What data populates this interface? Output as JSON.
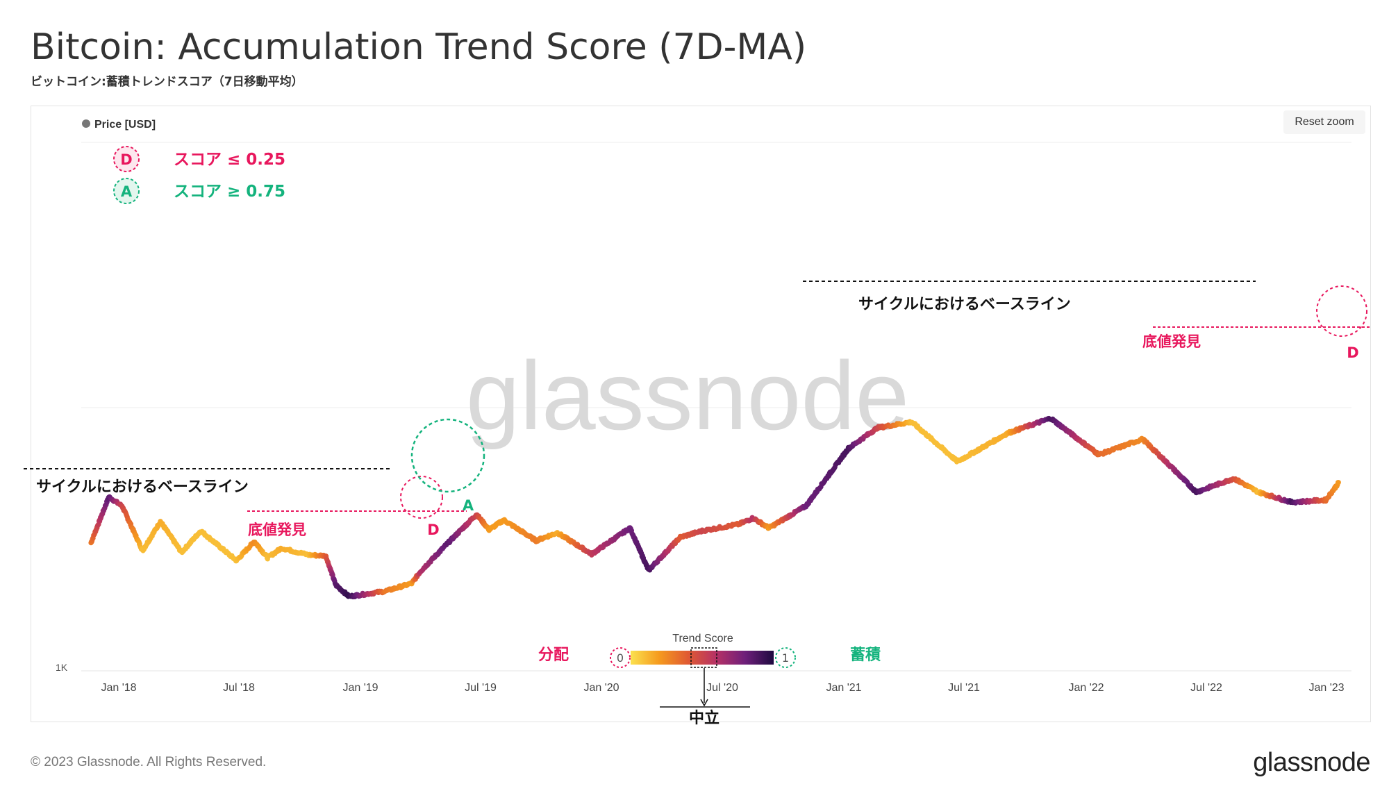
{
  "title": "Bitcoin: Accumulation Trend Score (7D-MA)",
  "subtitle": "ビットコイン:蓄積トレンドスコア（7日移動平均）",
  "reset_zoom": "Reset zoom",
  "legend_item": "Price [USD]",
  "key": {
    "d_letter": "D",
    "d_text": "スコア ≤ 0.25",
    "a_letter": "A",
    "a_text": "スコア ≥ 0.75"
  },
  "annotations": {
    "baseline_label": "サイクルにおけるベースライン",
    "bottom_label": "底値発見",
    "d_marker": "D",
    "a_marker": "A"
  },
  "colorbar": {
    "title": "Trend Score",
    "left_label": "分配",
    "right_label": "蓄積",
    "min_label": "0",
    "max_label": "1",
    "neutral_label": "中立"
  },
  "watermark": "glassnode",
  "footer": {
    "copyright": "© 2023 Glassnode. All Rights Reserved.",
    "logo": "glassnode"
  },
  "colors": {
    "title": "#333333",
    "distribution": "#e8175d",
    "accumulation": "#14b37d",
    "gradient": [
      "#fbe14f",
      "#f59a1e",
      "#e05a32",
      "#b53166",
      "#6e1f7a",
      "#1e0a40"
    ]
  },
  "chart_data": {
    "type": "line",
    "y_axis": {
      "scale": "log",
      "tick_labels": [
        "1K"
      ]
    },
    "x_tick_labels": [
      "Jan '18",
      "Jul '18",
      "Jan '19",
      "Jul '19",
      "Jan '20",
      "Jul '20",
      "Jan '21",
      "Jul '21",
      "Jan '22",
      "Jul '22",
      "Jan '23"
    ],
    "series": [
      {
        "name": "Price [USD]",
        "color_by": "trend_score",
        "points": [
          {
            "x": "2017-11-20",
            "price": 8000,
            "score": 0.3
          },
          {
            "x": "2017-12-17",
            "price": 17500,
            "score": 0.85
          },
          {
            "x": "2018-01-06",
            "price": 15000,
            "score": 0.5
          },
          {
            "x": "2018-02-06",
            "price": 7000,
            "score": 0.1
          },
          {
            "x": "2018-03-05",
            "price": 11500,
            "score": 0.15
          },
          {
            "x": "2018-04-06",
            "price": 6800,
            "score": 0.1
          },
          {
            "x": "2018-05-05",
            "price": 9800,
            "score": 0.1
          },
          {
            "x": "2018-06-28",
            "price": 5900,
            "score": 0.1
          },
          {
            "x": "2018-07-25",
            "price": 8200,
            "score": 0.25
          },
          {
            "x": "2018-08-14",
            "price": 6200,
            "score": 0.1
          },
          {
            "x": "2018-09-04",
            "price": 7300,
            "score": 0.15
          },
          {
            "x": "2018-10-15",
            "price": 6500,
            "score": 0.1
          },
          {
            "x": "2018-11-10",
            "price": 6400,
            "score": 0.4
          },
          {
            "x": "2018-11-25",
            "price": 3900,
            "score": 0.85
          },
          {
            "x": "2018-12-15",
            "price": 3200,
            "score": 0.95
          },
          {
            "x": "2019-02-08",
            "price": 3500,
            "score": 0.3
          },
          {
            "x": "2019-03-20",
            "price": 4000,
            "score": 0.2
          },
          {
            "x": "2019-04-02",
            "price": 4900,
            "score": 0.6
          },
          {
            "x": "2019-05-14",
            "price": 8000,
            "score": 0.85
          },
          {
            "x": "2019-06-26",
            "price": 13000,
            "score": 0.5
          },
          {
            "x": "2019-07-15",
            "price": 10000,
            "score": 0.2
          },
          {
            "x": "2019-08-06",
            "price": 11800,
            "score": 0.2
          },
          {
            "x": "2019-09-24",
            "price": 8300,
            "score": 0.3
          },
          {
            "x": "2019-10-26",
            "price": 9500,
            "score": 0.15
          },
          {
            "x": "2019-12-17",
            "price": 6600,
            "score": 0.55
          },
          {
            "x": "2020-02-13",
            "price": 10300,
            "score": 0.8
          },
          {
            "x": "2020-03-12",
            "price": 5000,
            "score": 0.9
          },
          {
            "x": "2020-04-29",
            "price": 8800,
            "score": 0.4
          },
          {
            "x": "2020-06-01",
            "price": 9800,
            "score": 0.5
          },
          {
            "x": "2020-07-27",
            "price": 11000,
            "score": 0.4
          },
          {
            "x": "2020-08-17",
            "price": 12200,
            "score": 0.6
          },
          {
            "x": "2020-09-10",
            "price": 10300,
            "score": 0.2
          },
          {
            "x": "2020-11-05",
            "price": 15000,
            "score": 0.8
          },
          {
            "x": "2021-01-08",
            "price": 40000,
            "score": 0.9
          },
          {
            "x": "2021-02-21",
            "price": 57000,
            "score": 0.5
          },
          {
            "x": "2021-04-14",
            "price": 63000,
            "score": 0.1
          },
          {
            "x": "2021-06-22",
            "price": 32000,
            "score": 0.1
          },
          {
            "x": "2021-09-06",
            "price": 52000,
            "score": 0.15
          },
          {
            "x": "2021-11-10",
            "price": 67000,
            "score": 0.9
          },
          {
            "x": "2022-01-22",
            "price": 36000,
            "score": 0.35
          },
          {
            "x": "2022-03-29",
            "price": 47000,
            "score": 0.25
          },
          {
            "x": "2022-05-12",
            "price": 29000,
            "score": 0.65
          },
          {
            "x": "2022-06-18",
            "price": 19000,
            "score": 0.9
          },
          {
            "x": "2022-08-14",
            "price": 24000,
            "score": 0.45
          },
          {
            "x": "2022-09-20",
            "price": 19000,
            "score": 0.1
          },
          {
            "x": "2022-11-09",
            "price": 16000,
            "score": 0.9
          },
          {
            "x": "2022-12-31",
            "price": 16600,
            "score": 0.35
          },
          {
            "x": "2023-01-20",
            "price": 22500,
            "score": 0.2
          }
        ]
      }
    ],
    "colorbar": {
      "label": "Trend Score",
      "range": [
        0,
        1
      ]
    }
  }
}
